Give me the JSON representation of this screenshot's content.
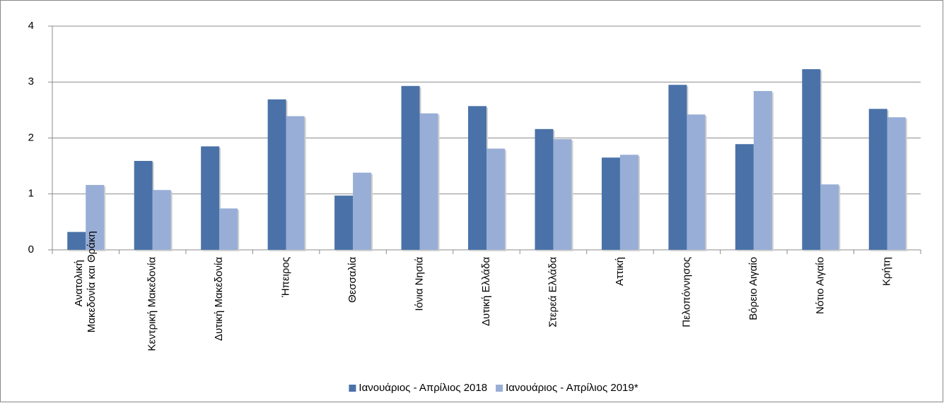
{
  "chart_data": {
    "type": "bar",
    "categories": [
      "Ανατολική Μακεδονία και Θράκη",
      "Κεντρική Μακεδονία",
      "Δυτική Μακεδονία",
      "Ήπειρος",
      "Θεσσαλία",
      "Ιόνια Νησιά",
      "Δυτική Ελλάδα",
      "Στερεά Ελλάδα",
      "Αττική",
      "Πελοπόννησος",
      "Βόρειο Αιγαίο",
      "Νότιο Αιγαίο",
      "Κρήτη"
    ],
    "series": [
      {
        "name": "Ιανουάριος - Απρίλιος 2018",
        "color": "#4a72a8",
        "values": [
          0.32,
          1.59,
          1.85,
          2.69,
          0.97,
          2.93,
          2.57,
          2.16,
          1.65,
          2.95,
          1.89,
          3.23,
          2.52
        ]
      },
      {
        "name": "Ιανουάριος - Απρίλιος 2019*",
        "color": "#98aed6",
        "values": [
          1.16,
          1.07,
          0.74,
          2.39,
          1.38,
          2.44,
          1.81,
          1.98,
          1.7,
          2.42,
          2.84,
          1.17,
          2.37
        ]
      }
    ],
    "ylim": [
      0,
      4
    ],
    "yticks": [
      0,
      1,
      2,
      3,
      4
    ],
    "grid": true,
    "legend": "bottom"
  }
}
